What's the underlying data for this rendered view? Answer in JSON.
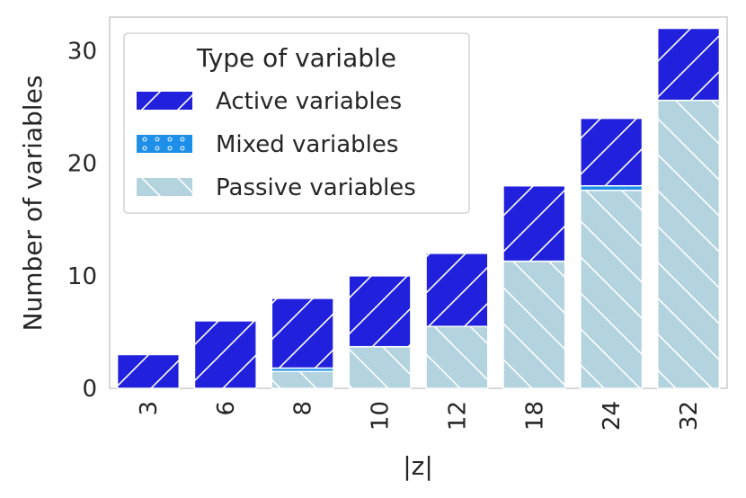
{
  "chart_data": {
    "type": "bar",
    "stacked": true,
    "xlabel": "|z|",
    "ylabel": "Number of variables",
    "categories": [
      "3",
      "6",
      "8",
      "10",
      "12",
      "18",
      "24",
      "32"
    ],
    "ylim": [
      0,
      33
    ],
    "yticks": [
      0,
      10,
      20,
      30
    ],
    "grid": false,
    "legend": {
      "title": "Type of variable",
      "placement": "top-left"
    },
    "series": [
      {
        "name": "Passive variables",
        "color": "#add8e6",
        "hatch": "backslash",
        "values": [
          0,
          0,
          1.5,
          3.7,
          5.5,
          11.3,
          17.6,
          25.6
        ]
      },
      {
        "name": "Mixed variables",
        "color": "#1e90ff",
        "hatch": "dots",
        "values": [
          0,
          0,
          0.3,
          0,
          0,
          0,
          0.4,
          0
        ]
      },
      {
        "name": "Active variables",
        "color": "#0000ff",
        "hatch": "slash",
        "values": [
          3,
          6,
          6.2,
          6.3,
          6.5,
          6.7,
          6.0,
          6.4
        ]
      }
    ]
  }
}
